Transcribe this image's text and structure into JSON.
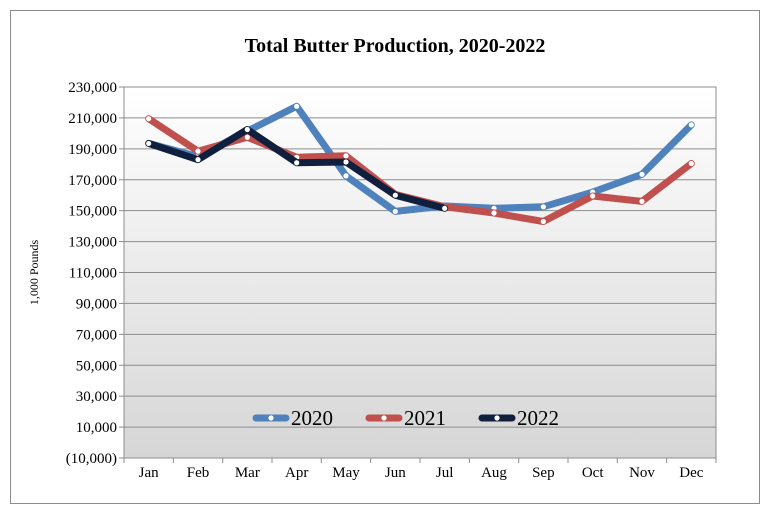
{
  "chart_data": {
    "type": "line",
    "title": "Total Butter Production, 2020-2022",
    "xlabel": "",
    "ylabel": "1,000 Pounds",
    "categories": [
      "Jan",
      "Feb",
      "Mar",
      "Apr",
      "May",
      "Jun",
      "Jul",
      "Aug",
      "Sep",
      "Oct",
      "Nov",
      "Dec"
    ],
    "ylim": [
      -10000,
      230000
    ],
    "yticks": [
      -10000,
      10000,
      30000,
      50000,
      70000,
      90000,
      110000,
      130000,
      150000,
      170000,
      190000,
      210000,
      230000
    ],
    "ytick_labels": [
      "(10,000)",
      "10,000",
      "30,000",
      "50,000",
      "70,000",
      "90,000",
      "110,000",
      "130,000",
      "150,000",
      "170,000",
      "190,000",
      "210,000",
      "230,000"
    ],
    "grid": true,
    "legend_position": "bottom-inside",
    "series": [
      {
        "name": "2020",
        "color": "#4f81bd",
        "values": [
          193500,
          185000,
          201500,
          217500,
          172500,
          149500,
          153000,
          151500,
          152500,
          162000,
          173500,
          205500
        ]
      },
      {
        "name": "2021",
        "color": "#c0504d",
        "values": [
          209500,
          188500,
          197500,
          184500,
          185500,
          160500,
          152500,
          148500,
          143000,
          159500,
          156000,
          180500
        ]
      },
      {
        "name": "2022",
        "color": "#0f1f3d",
        "values": [
          193500,
          183000,
          202500,
          181000,
          181500,
          160000,
          151500,
          null,
          null,
          null,
          null,
          null
        ]
      }
    ]
  }
}
